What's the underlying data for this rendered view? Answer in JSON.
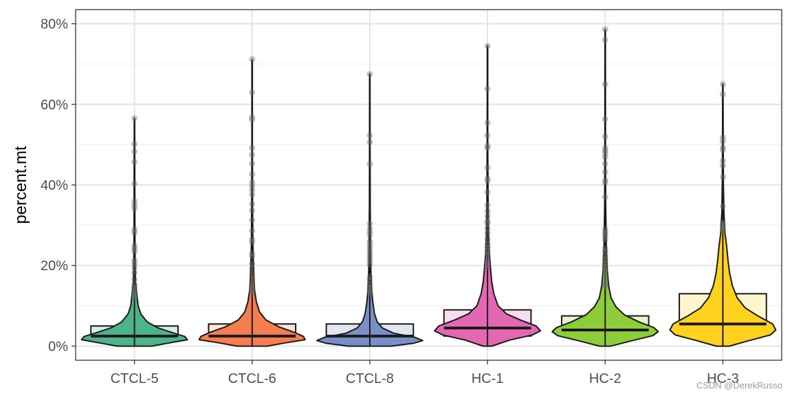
{
  "chart_data": {
    "type": "violin",
    "ylabel": "percent.mt",
    "xlabel": "",
    "ylim": [
      -3.5,
      83.5
    ],
    "yticks": [
      0,
      20,
      40,
      60,
      80
    ],
    "ytick_labels": [
      "0%",
      "20%",
      "40%",
      "60%",
      "80%"
    ],
    "grid": true,
    "legend": "none",
    "categories": [
      "CTCL-5",
      "CTCL-6",
      "CTCL-8",
      "HC-1",
      "HC-2",
      "HC-3"
    ],
    "groups": [
      {
        "name": "CTCL-5",
        "color": "#4db38a",
        "box": {
          "q1": 1.5,
          "median": 2.5,
          "q3": 5.0
        },
        "violin": [
          [
            0,
            0.32
          ],
          [
            0.8,
            0.66
          ],
          [
            1.6,
            1.0
          ],
          [
            2.4,
            0.95
          ],
          [
            3.2,
            0.75
          ],
          [
            4.5,
            0.45
          ],
          [
            6,
            0.24
          ],
          [
            8,
            0.12
          ],
          [
            10,
            0.07
          ],
          [
            13,
            0.045
          ],
          [
            16,
            0.02
          ],
          [
            22,
            0.012
          ],
          [
            30,
            0.008
          ],
          [
            45,
            0.005
          ],
          [
            56.5,
            0.004
          ]
        ],
        "outliers": [
          56.5,
          50.2,
          48.3,
          45.7,
          40.3,
          36.0,
          35.0,
          34.2,
          29.0,
          28.2,
          25.0,
          24.2,
          23.5,
          21.3,
          20.5,
          19.5,
          18.2,
          16.5,
          15.2,
          14.5,
          13.6,
          12.8,
          12.2
        ]
      },
      {
        "name": "CTCL-6",
        "color": "#f47e50",
        "box": {
          "q1": 1.2,
          "median": 2.5,
          "q3": 5.5
        },
        "violin": [
          [
            0,
            0.28
          ],
          [
            0.8,
            0.62
          ],
          [
            1.6,
            1.0
          ],
          [
            2.4,
            0.97
          ],
          [
            3.4,
            0.8
          ],
          [
            4.8,
            0.5
          ],
          [
            6.5,
            0.26
          ],
          [
            8.5,
            0.14
          ],
          [
            11,
            0.08
          ],
          [
            14,
            0.045
          ],
          [
            18,
            0.03
          ],
          [
            25,
            0.015
          ],
          [
            35,
            0.008
          ],
          [
            50,
            0.005
          ],
          [
            71,
            0.004
          ]
        ],
        "outliers": [
          71.2,
          63.0,
          56.8,
          56.2,
          49.2,
          47.5,
          45.3,
          42.7,
          40.7,
          39.8,
          38.8,
          37.6,
          35.3,
          33.7,
          31.3,
          28.6,
          26.5,
          25.8,
          23.0,
          22.3,
          20.5,
          19.3,
          17.8,
          16.5,
          15.2,
          14.2,
          13.3
        ]
      },
      {
        "name": "CTCL-8",
        "color": "#7a8ec8",
        "box": {
          "q1": 1.0,
          "median": 2.5,
          "q3": 5.5
        },
        "violin": [
          [
            0,
            0.4
          ],
          [
            0.7,
            0.82
          ],
          [
            1.4,
            1.0
          ],
          [
            2.2,
            0.85
          ],
          [
            3.2,
            0.45
          ],
          [
            4.5,
            0.24
          ],
          [
            6,
            0.14
          ],
          [
            8,
            0.09
          ],
          [
            11,
            0.055
          ],
          [
            14,
            0.035
          ],
          [
            18,
            0.022
          ],
          [
            25,
            0.013
          ],
          [
            35,
            0.008
          ],
          [
            50,
            0.005
          ],
          [
            67.5,
            0.004
          ]
        ],
        "outliers": [
          67.5,
          52.3,
          50.6,
          45.2,
          30.4,
          29.2,
          28.3,
          27.5,
          26.0,
          25.2,
          24.5,
          23.6,
          22.8,
          22.0,
          21.2,
          20.3,
          17.2,
          16.4,
          15.3,
          14.5,
          13.8,
          13.2
        ]
      },
      {
        "name": "HC-1",
        "color": "#e467b3",
        "box": {
          "q1": 2.5,
          "median": 4.5,
          "q3": 9.0
        },
        "violin": [
          [
            0,
            0.08
          ],
          [
            1.5,
            0.42
          ],
          [
            2.8,
            0.85
          ],
          [
            3.8,
            1.0
          ],
          [
            5,
            0.92
          ],
          [
            6.5,
            0.62
          ],
          [
            8,
            0.36
          ],
          [
            10,
            0.2
          ],
          [
            13,
            0.12
          ],
          [
            16,
            0.08
          ],
          [
            19,
            0.06
          ],
          [
            23,
            0.035
          ],
          [
            28,
            0.02
          ],
          [
            35,
            0.012
          ],
          [
            50,
            0.006
          ],
          [
            74.5,
            0.004
          ]
        ],
        "outliers": [
          74.5,
          63.8,
          55.4,
          52.3,
          49.7,
          49.2,
          44.3,
          41.6,
          41.0,
          38.2,
          35.0,
          33.5,
          32.2,
          31.0,
          30.5,
          29.2,
          28.0,
          26.5,
          25.3,
          24.6,
          23.5,
          22.6,
          21.2,
          20.4,
          19.6
        ]
      },
      {
        "name": "HC-2",
        "color": "#8fcc3c",
        "box": {
          "q1": 2.5,
          "median": 4.0,
          "q3": 7.5
        },
        "violin": [
          [
            0,
            0.1
          ],
          [
            1.4,
            0.52
          ],
          [
            2.6,
            0.9
          ],
          [
            3.6,
            1.0
          ],
          [
            4.6,
            0.92
          ],
          [
            6,
            0.64
          ],
          [
            7.8,
            0.36
          ],
          [
            9.8,
            0.2
          ],
          [
            12,
            0.11
          ],
          [
            15,
            0.065
          ],
          [
            19,
            0.04
          ],
          [
            25,
            0.022
          ],
          [
            35,
            0.01
          ],
          [
            50,
            0.006
          ],
          [
            78.5,
            0.004
          ]
        ],
        "outliers": [
          78.6,
          76.0,
          65.0,
          56.3,
          52.0,
          49.2,
          48.5,
          47.8,
          46.9,
          45.3,
          43.2,
          41.2,
          40.6,
          37.0,
          29.0,
          28.3,
          27.8,
          27.2,
          26.4,
          24.3,
          23.6,
          22.4,
          21.5,
          20.5,
          19.6,
          18.6,
          17.4,
          16.6,
          15.5,
          14.8
        ]
      },
      {
        "name": "HC-3",
        "color": "#ffd21f",
        "box": {
          "q1": 3.5,
          "median": 5.5,
          "q3": 13.0
        },
        "violin": [
          [
            0,
            0.12
          ],
          [
            1.4,
            0.5
          ],
          [
            2.8,
            0.9
          ],
          [
            4,
            1.0
          ],
          [
            5.5,
            0.94
          ],
          [
            7.5,
            0.66
          ],
          [
            9.5,
            0.42
          ],
          [
            12,
            0.27
          ],
          [
            15,
            0.18
          ],
          [
            18,
            0.13
          ],
          [
            21,
            0.1
          ],
          [
            25,
            0.07
          ],
          [
            28,
            0.04
          ],
          [
            33,
            0.02
          ],
          [
            40,
            0.01
          ],
          [
            52,
            0.006
          ],
          [
            65,
            0.004
          ]
        ],
        "outliers": [
          65.0,
          62.5,
          51.8,
          50.8,
          49.3,
          48.7,
          46.0,
          44.8,
          42.0,
          34.7,
          30.6,
          30.0,
          29.3,
          28.8
        ]
      }
    ]
  },
  "watermark": "CSDN @DerekRusso"
}
